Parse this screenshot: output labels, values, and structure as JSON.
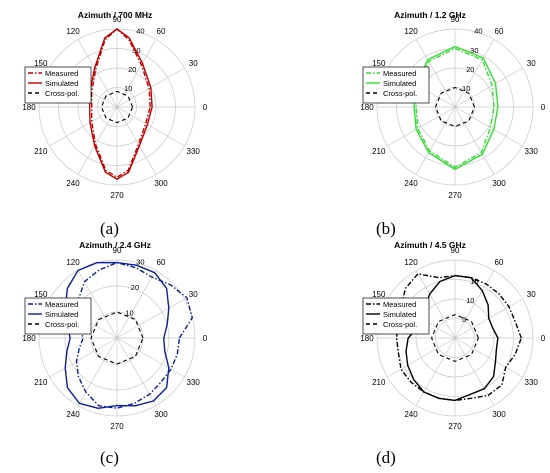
{
  "panel_labels": [
    "(a)",
    "(b)",
    "(c)",
    "(d)"
  ],
  "chart_data": [
    {
      "type": "polar",
      "title": "Azimuth  / 700 MHz",
      "angle_ticks": [
        "90",
        "60",
        "30",
        "0",
        "330",
        "300",
        "270",
        "240",
        "210",
        "180",
        "150",
        "120"
      ],
      "radial_ticks": [
        10,
        20,
        30,
        40
      ],
      "rlim": [
        0,
        40
      ],
      "legend": [
        "Measured",
        "Simulated",
        "Cross-pol."
      ],
      "legend_position": "left",
      "color": "#c00000",
      "series": [
        {
          "name": "Measured",
          "style": "dash-dot",
          "angles": [
            0,
            30,
            60,
            80,
            90,
            100,
            120,
            150,
            180,
            210,
            240,
            260,
            270,
            280,
            300,
            330
          ],
          "values": [
            17,
            19,
            25,
            35,
            40,
            35,
            22,
            15,
            13,
            15,
            22,
            33,
            36,
            33,
            22,
            17
          ]
        },
        {
          "name": "Simulated",
          "style": "solid",
          "angles": [
            0,
            30,
            60,
            80,
            90,
            100,
            120,
            150,
            180,
            210,
            240,
            260,
            270,
            280,
            300,
            330
          ],
          "values": [
            18,
            20,
            26,
            36,
            40,
            36,
            23,
            16,
            14,
            16,
            23,
            34,
            37,
            34,
            23,
            18
          ]
        },
        {
          "name": "Cross-pol.",
          "style": "dashed",
          "angles": [
            0,
            45,
            90,
            135,
            180,
            225,
            270,
            315
          ],
          "values": [
            8,
            8,
            8,
            8,
            8,
            8,
            8,
            8
          ]
        }
      ]
    },
    {
      "type": "polar",
      "title": "Azimuth / 1.2 GHz",
      "angle_ticks": [
        "90",
        "60",
        "30",
        "0",
        "330",
        "300",
        "270",
        "240",
        "210",
        "180",
        "150",
        "120"
      ],
      "radial_ticks": [
        10,
        20,
        30,
        40
      ],
      "rlim": [
        0,
        40
      ],
      "legend": [
        "Measured",
        "Simulated",
        "Cross-pol."
      ],
      "legend_position": "left",
      "color": "#33dd33",
      "series": [
        {
          "name": "Measured",
          "style": "dash-dot",
          "angles": [
            0,
            30,
            60,
            90,
            120,
            150,
            180,
            210,
            240,
            270,
            300,
            330
          ],
          "values": [
            20,
            22,
            28,
            30,
            27,
            22,
            20,
            22,
            26,
            31,
            27,
            21
          ]
        },
        {
          "name": "Simulated",
          "style": "solid",
          "angles": [
            0,
            30,
            60,
            90,
            120,
            150,
            180,
            210,
            240,
            270,
            300,
            330
          ],
          "values": [
            22,
            24,
            29,
            31,
            28,
            23,
            21,
            23,
            27,
            32,
            28,
            23
          ]
        },
        {
          "name": "Cross-pol.",
          "style": "dashed",
          "angles": [
            0,
            45,
            90,
            135,
            180,
            225,
            270,
            315
          ],
          "values": [
            10,
            10,
            10,
            10,
            10,
            10,
            10,
            10
          ]
        }
      ]
    },
    {
      "type": "polar",
      "title": "Azimuth / 2.4 GHz",
      "angle_ticks": [
        "90",
        "60",
        "30",
        "0",
        "330",
        "300",
        "270",
        "240",
        "210",
        "180",
        "150",
        "120"
      ],
      "radial_ticks": [
        10,
        20,
        30
      ],
      "rlim": [
        0,
        30
      ],
      "legend": [
        "Measured",
        "Simulated",
        "Cross-pol."
      ],
      "legend_position": "left",
      "color": "#0a1f9a",
      "series": [
        {
          "name": "Measured",
          "style": "dash-dot",
          "angles": [
            0,
            15,
            30,
            45,
            60,
            75,
            90,
            105,
            120,
            135,
            150,
            165,
            180,
            195,
            210,
            225,
            240,
            255,
            270,
            285,
            300,
            315,
            330,
            345
          ],
          "values": [
            24,
            30,
            31,
            29,
            27,
            28,
            29,
            27,
            25,
            21,
            17,
            15,
            13,
            15,
            18,
            21,
            24,
            27,
            27,
            26,
            25,
            24,
            24,
            24
          ]
        },
        {
          "name": "Simulated",
          "style": "solid",
          "angles": [
            0,
            15,
            30,
            45,
            60,
            75,
            90,
            105,
            120,
            135,
            150,
            165,
            180,
            195,
            210,
            225,
            240,
            255,
            270,
            285,
            300,
            315,
            330,
            345
          ],
          "values": [
            18,
            20,
            23,
            27,
            29,
            29,
            29,
            30,
            30,
            27,
            23,
            20,
            18,
            20,
            23,
            27,
            29,
            28,
            26,
            27,
            28,
            27,
            23,
            19
          ]
        },
        {
          "name": "Cross-pol.",
          "style": "dashed",
          "angles": [
            0,
            45,
            90,
            135,
            180,
            225,
            270,
            315
          ],
          "values": [
            10,
            10,
            10,
            10,
            10,
            10,
            10,
            10
          ]
        }
      ]
    },
    {
      "type": "polar",
      "title": "Azimuth / 4.5 GHz",
      "angle_ticks": [
        "90",
        "60",
        "30",
        "0",
        "330",
        "300",
        "270",
        "240",
        "210",
        "180",
        "150",
        "120"
      ],
      "radial_ticks": [
        5,
        10,
        15
      ],
      "rlim": [
        0,
        20
      ],
      "legend": [
        "Measured",
        "Simulated",
        "Cross-pol."
      ],
      "legend_position": "left",
      "color": "#000000",
      "series": [
        {
          "name": "Measured",
          "style": "dash-dot",
          "angles": [
            0,
            15,
            30,
            45,
            60,
            75,
            90,
            105,
            120,
            135,
            150,
            165,
            180,
            195,
            210,
            225,
            240,
            255,
            270,
            285,
            300,
            315,
            330,
            345
          ],
          "values": [
            17,
            16,
            16,
            16,
            16,
            16,
            16,
            16,
            19,
            18,
            16,
            15,
            15,
            15,
            16,
            16,
            16,
            16,
            16,
            16,
            17,
            17,
            15,
            16
          ]
        },
        {
          "name": "Simulated",
          "style": "solid",
          "angles": [
            0,
            15,
            30,
            45,
            60,
            75,
            90,
            105,
            120,
            135,
            150,
            165,
            180,
            195,
            210,
            225,
            240,
            255,
            270,
            285,
            300,
            315,
            330,
            345
          ],
          "values": [
            11,
            10,
            10,
            12,
            14,
            16,
            16,
            15,
            13,
            11,
            10,
            10,
            12,
            13,
            14,
            15,
            16,
            16,
            16,
            15,
            15,
            14,
            12,
            11
          ]
        },
        {
          "name": "Cross-pol.",
          "style": "dashed",
          "angles": [
            0,
            45,
            90,
            135,
            180,
            225,
            270,
            315
          ],
          "values": [
            6,
            6,
            6,
            6,
            6,
            6,
            6,
            6
          ]
        }
      ]
    }
  ]
}
